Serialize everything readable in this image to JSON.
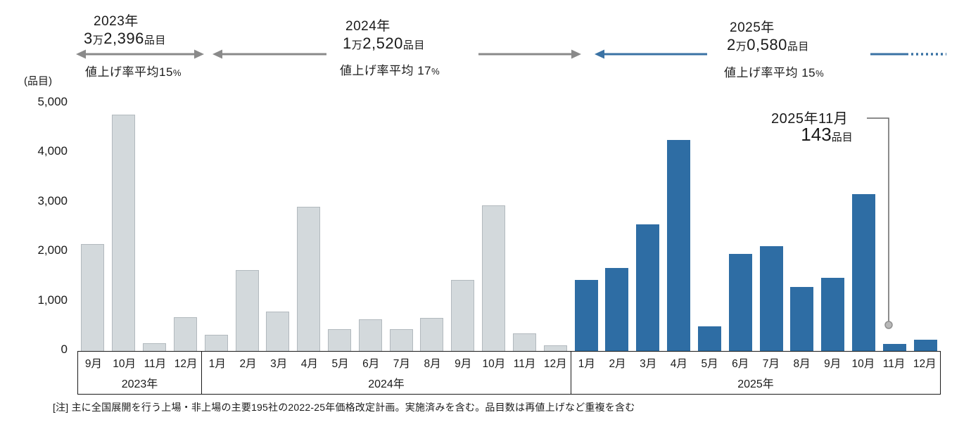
{
  "y_axis": {
    "unit_label": "(品目)",
    "ticks": [
      "5,000",
      "4,000",
      "3,000",
      "2,000",
      "1,000",
      "0"
    ]
  },
  "annotations": [
    {
      "year": "2023年",
      "num1": "3",
      "man": "万",
      "num2": "2,396",
      "unit": "品目",
      "rate": "値上げ率平均15",
      "pct": "%"
    },
    {
      "year": "2024年",
      "num1": "1",
      "man": "万",
      "num2": "2,520",
      "unit": "品目",
      "rate": "値上げ率平均 17",
      "pct": "%"
    },
    {
      "year": "2025年",
      "num1": "2",
      "man": "万",
      "num2": "0,580",
      "unit": "品目",
      "rate": "値上げ率平均 15",
      "pct": "%"
    }
  ],
  "callout": {
    "label": "2025年11月",
    "value": "143",
    "unit": "品目"
  },
  "note": "[注]  主に全国展開を行う上場・非上場の主要195社の2022-25年価格改定計画。実施済みを含む。品目数は再値上げなど重複を含む",
  "colors": {
    "bar_gray": "#d3d9dc",
    "bar_blue": "#2e6da4",
    "arrow_gray": "#8a8a8a",
    "arrow_blue": "#3a72a4",
    "marker_gray": "#b8b8b8"
  },
  "chart_data": {
    "type": "bar",
    "ylabel": "(品目)",
    "ylim": [
      0,
      5000
    ],
    "grid": false,
    "groups": [
      {
        "year": "2023年",
        "months": [
          "9月",
          "10月",
          "11月",
          "12月"
        ],
        "values": [
          2150,
          4750,
          150,
          680
        ],
        "color": "#d3d9dc"
      },
      {
        "year": "2024年",
        "months": [
          "1月",
          "2月",
          "3月",
          "4月",
          "5月",
          "6月",
          "7月",
          "8月",
          "9月",
          "10月",
          "11月",
          "12月"
        ],
        "values": [
          320,
          1630,
          790,
          2900,
          440,
          630,
          440,
          670,
          1420,
          2930,
          360,
          110
        ],
        "color": "#d3d9dc"
      },
      {
        "year": "2025年",
        "months": [
          "1月",
          "2月",
          "3月",
          "4月",
          "5月",
          "6月",
          "7月",
          "8月",
          "9月",
          "10月",
          "11月",
          "12月"
        ],
        "values": [
          1430,
          1670,
          2540,
          4240,
          490,
          1950,
          2100,
          1290,
          1470,
          3150,
          143,
          220
        ],
        "color": "#2e6da4"
      }
    ]
  }
}
